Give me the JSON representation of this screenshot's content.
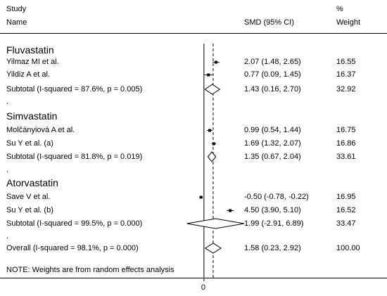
{
  "header": {
    "col1_line1": "Study",
    "col1_line2": "Name",
    "ci_header": "SMD (95% CI)",
    "weight_line1": "%",
    "weight_line2": "Weight"
  },
  "note": "NOTE: Weights are from random effects analysis",
  "dot": ".",
  "chart_data": {
    "type": "forest",
    "measure": "SMD (95% CI)",
    "null_value": 0,
    "x_ticks": [
      0
    ],
    "x_tick_labels": [
      "0"
    ],
    "overall_reference": 1.58,
    "xlim": [
      -3.6,
      6.05
    ],
    "groups": [
      {
        "name": "Fluvastatin",
        "studies": [
          {
            "name": "Yilmaz MI et al.",
            "est": 2.07,
            "lo": 1.48,
            "hi": 2.65,
            "ci_text": "2.07 (1.48, 2.65)",
            "weight": "16.55"
          },
          {
            "name": "Yildiz A et al.",
            "est": 0.77,
            "lo": 0.09,
            "hi": 1.45,
            "ci_text": "0.77 (0.09, 1.45)",
            "weight": "16.37"
          }
        ],
        "subtotal": {
          "label": "Subtotal  (I-squared = 87.6%, p = 0.005)",
          "est": 1.43,
          "lo": 0.16,
          "hi": 2.7,
          "ci_text": "1.43 (0.16, 2.70)",
          "weight": "32.92"
        }
      },
      {
        "name": "Simvastatin",
        "studies": [
          {
            "name": "Molčányiová A et al.",
            "est": 0.99,
            "lo": 0.54,
            "hi": 1.44,
            "ci_text": "0.99 (0.54, 1.44)",
            "weight": "16.75"
          },
          {
            "name": "Su Y et al. (a)",
            "est": 1.69,
            "lo": 1.32,
            "hi": 2.07,
            "ci_text": "1.69 (1.32, 2.07)",
            "weight": "16.86"
          }
        ],
        "subtotal": {
          "label": "Subtotal  (I-squared = 81.8%, p = 0.019)",
          "est": 1.35,
          "lo": 0.67,
          "hi": 2.04,
          "ci_text": "1.35 (0.67, 2.04)",
          "weight": "33.61"
        }
      },
      {
        "name": "Atorvastatin",
        "studies": [
          {
            "name": "Save V et al.",
            "est": -0.5,
            "lo": -0.78,
            "hi": -0.22,
            "ci_text": "-0.50 (-0.78, -0.22)",
            "weight": "16.95"
          },
          {
            "name": "Su Y et al. (b)",
            "est": 4.5,
            "lo": 3.9,
            "hi": 5.1,
            "ci_text": "4.50 (3.90, 5.10)",
            "weight": "16.52"
          }
        ],
        "subtotal": {
          "label": "Subtotal  (I-squared = 99.5%, p = 0.000)",
          "est": 1.99,
          "lo": -2.91,
          "hi": 6.89,
          "ci_text": "1.99 (-2.91, 6.89)",
          "weight": "33.47"
        }
      }
    ],
    "overall": {
      "label": "Overall  (I-squared = 98.1%, p = 0.000)",
      "est": 1.58,
      "lo": 0.23,
      "hi": 2.92,
      "ci_text": "1.58 (0.23, 2.92)",
      "weight": "100.00"
    }
  }
}
